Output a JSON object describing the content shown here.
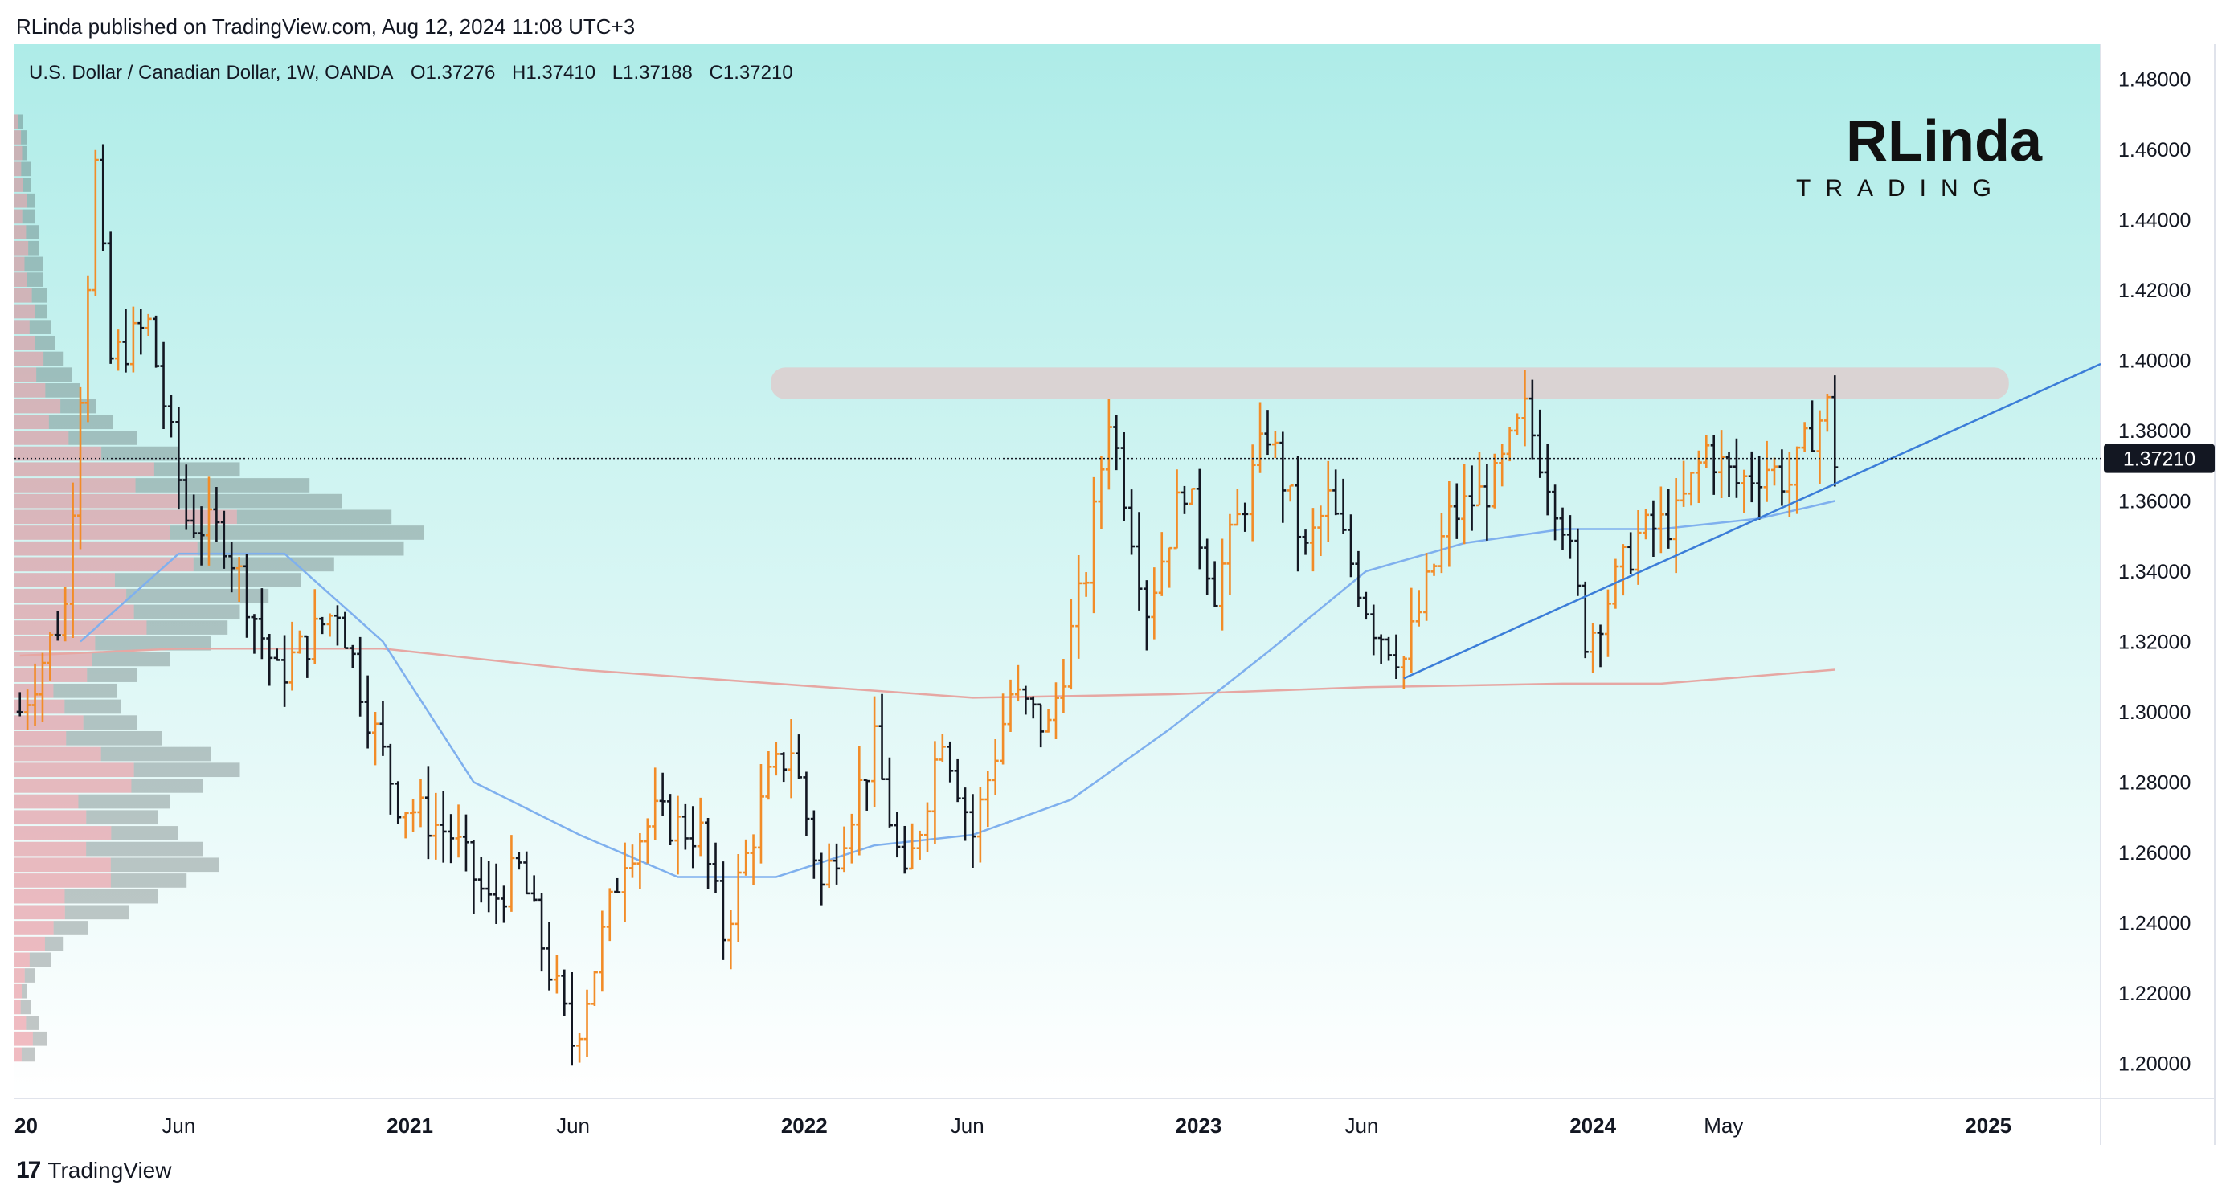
{
  "header": {
    "publisher_line": "RLinda published on TradingView.com, Aug 12, 2024 11:08 UTC+3"
  },
  "chart_header": {
    "symbol": "U.S. Dollar / Canadian Dollar, 1W, OANDA",
    "open_label": "O",
    "open": "1.37276",
    "high_label": "H",
    "high": "1.37410",
    "low_label": "L",
    "low": "1.37188",
    "close_label": "C",
    "close": "1.37210"
  },
  "brand": {
    "main": "RLinda",
    "sub": "TRADING"
  },
  "footer": {
    "logo_text": "TradingView",
    "logo_mark": "17"
  },
  "colors": {
    "background_top": "#aeece8",
    "background_bottom": "#ffffff",
    "bull_bar": "#f28c28",
    "bear_bar": "#131722",
    "resistance_zone": "#dccfcf",
    "trendline": "#3b7dd8",
    "ma_fast": "#7fb0ee",
    "ma_slow": "#e6a7a3",
    "price_tag_bg": "#131722",
    "volume_profile_red": "#e36b78",
    "volume_profile_dark": "#2e3b3b"
  },
  "chart_data": {
    "type": "ohlc",
    "title": "U.S. Dollar / Canadian Dollar, 1W, OANDA",
    "ylim": [
      1.19,
      1.49
    ],
    "y_ticks": [
      "1.48000",
      "1.46000",
      "1.44000",
      "1.42000",
      "1.40000",
      "1.38000",
      "1.36000",
      "1.34000",
      "1.32000",
      "1.30000",
      "1.28000",
      "1.26000",
      "1.24000",
      "1.22000",
      "1.20000"
    ],
    "x_tick_labels": [
      {
        "label": "20",
        "date": "2020-01-01",
        "bold": true
      },
      {
        "label": "Jun",
        "date": "2020-06-01",
        "bold": false
      },
      {
        "label": "2021",
        "date": "2021-01-01",
        "bold": true
      },
      {
        "label": "Jun",
        "date": "2021-06-01",
        "bold": false
      },
      {
        "label": "2022",
        "date": "2022-01-01",
        "bold": true
      },
      {
        "label": "Jun",
        "date": "2022-06-01",
        "bold": false
      },
      {
        "label": "2023",
        "date": "2023-01-01",
        "bold": true
      },
      {
        "label": "Jun",
        "date": "2023-06-01",
        "bold": false
      },
      {
        "label": "2024",
        "date": "2024-01-01",
        "bold": true
      },
      {
        "label": "May",
        "date": "2024-05-01",
        "bold": false
      },
      {
        "label": "2025",
        "date": "2025-01-01",
        "bold": true
      }
    ],
    "x_start": "2020-01-01",
    "x_end": "2025-04-15",
    "last_price": "1.37210",
    "resistance_zone": {
      "from": "2021-12-01",
      "to": "2025-01-20",
      "low": 1.389,
      "high": 1.398
    },
    "trendline": {
      "from_date": "2023-07-10",
      "from_price": 1.3095,
      "to_date": "2025-04-15",
      "to_price": 1.399
    },
    "anchor_points": [
      [
        "2020-01-06",
        1.3
      ],
      [
        "2020-02-17",
        1.33
      ],
      [
        "2020-03-16",
        1.455
      ],
      [
        "2020-03-30",
        1.4
      ],
      [
        "2020-05-04",
        1.41
      ],
      [
        "2020-06-08",
        1.355
      ],
      [
        "2020-07-13",
        1.35
      ],
      [
        "2020-08-31",
        1.31
      ],
      [
        "2020-10-26",
        1.33
      ],
      [
        "2020-11-23",
        1.3
      ],
      [
        "2020-12-21",
        1.275
      ],
      [
        "2021-02-08",
        1.265
      ],
      [
        "2021-03-15",
        1.245
      ],
      [
        "2021-04-12",
        1.255
      ],
      [
        "2021-06-01",
        1.205
      ],
      [
        "2021-07-19",
        1.26
      ],
      [
        "2021-08-16",
        1.27
      ],
      [
        "2021-09-27",
        1.265
      ],
      [
        "2021-10-18",
        1.237
      ],
      [
        "2021-11-29",
        1.28
      ],
      [
        "2021-12-20",
        1.29
      ],
      [
        "2022-01-17",
        1.25
      ],
      [
        "2022-03-07",
        1.29
      ],
      [
        "2022-04-04",
        1.25
      ],
      [
        "2022-05-09",
        1.295
      ],
      [
        "2022-06-06",
        1.265
      ],
      [
        "2022-07-11",
        1.305
      ],
      [
        "2022-08-15",
        1.295
      ],
      [
        "2022-09-19",
        1.34
      ],
      [
        "2022-10-10",
        1.385
      ],
      [
        "2022-11-14",
        1.33
      ],
      [
        "2022-12-19",
        1.365
      ],
      [
        "2023-01-16",
        1.335
      ],
      [
        "2023-03-06",
        1.38
      ],
      [
        "2023-04-10",
        1.345
      ],
      [
        "2023-05-01",
        1.36
      ],
      [
        "2023-06-12",
        1.325
      ],
      [
        "2023-07-10",
        1.315
      ],
      [
        "2023-08-21",
        1.355
      ],
      [
        "2023-10-02",
        1.365
      ],
      [
        "2023-10-30",
        1.385
      ],
      [
        "2023-12-04",
        1.355
      ],
      [
        "2023-12-26",
        1.32
      ],
      [
        "2024-02-12",
        1.35
      ],
      [
        "2024-03-18",
        1.355
      ],
      [
        "2024-04-15",
        1.375
      ],
      [
        "2024-05-13",
        1.365
      ],
      [
        "2024-06-10",
        1.37
      ],
      [
        "2024-07-01",
        1.365
      ],
      [
        "2024-07-22",
        1.38
      ],
      [
        "2024-08-05",
        1.3865
      ],
      [
        "2024-08-12",
        1.3721
      ]
    ],
    "ma_fast_points": [
      [
        "2020-03-02",
        1.32
      ],
      [
        "2020-06-01",
        1.345
      ],
      [
        "2020-09-07",
        1.345
      ],
      [
        "2020-12-07",
        1.32
      ],
      [
        "2021-03-01",
        1.28
      ],
      [
        "2021-06-07",
        1.265
      ],
      [
        "2021-09-06",
        1.253
      ],
      [
        "2021-12-06",
        1.253
      ],
      [
        "2022-03-07",
        1.262
      ],
      [
        "2022-06-06",
        1.265
      ],
      [
        "2022-09-05",
        1.275
      ],
      [
        "2022-12-05",
        1.295
      ],
      [
        "2023-03-06",
        1.317
      ],
      [
        "2023-06-05",
        1.34
      ],
      [
        "2023-09-04",
        1.348
      ],
      [
        "2023-12-04",
        1.352
      ],
      [
        "2024-03-04",
        1.352
      ],
      [
        "2024-06-03",
        1.355
      ],
      [
        "2024-08-12",
        1.36
      ]
    ],
    "ma_slow_points": [
      [
        "2020-01-06",
        1.316
      ],
      [
        "2020-06-01",
        1.318
      ],
      [
        "2020-12-07",
        1.318
      ],
      [
        "2021-06-07",
        1.312
      ],
      [
        "2021-12-06",
        1.308
      ],
      [
        "2022-06-06",
        1.304
      ],
      [
        "2022-12-05",
        1.305
      ],
      [
        "2023-06-05",
        1.307
      ],
      [
        "2023-12-04",
        1.308
      ],
      [
        "2024-03-04",
        1.308
      ],
      [
        "2024-08-12",
        1.312
      ]
    ],
    "volume_profile": {
      "price_from": 1.2,
      "price_to": 1.47,
      "rows": 60,
      "levels": [
        0.05,
        0.08,
        0.06,
        0.04,
        0.03,
        0.05,
        0.09,
        0.12,
        0.18,
        0.28,
        0.35,
        0.42,
        0.5,
        0.46,
        0.4,
        0.35,
        0.38,
        0.46,
        0.55,
        0.48,
        0.36,
        0.3,
        0.26,
        0.25,
        0.3,
        0.38,
        0.48,
        0.52,
        0.55,
        0.62,
        0.7,
        0.78,
        0.95,
        1.0,
        0.92,
        0.8,
        0.72,
        0.55,
        0.4,
        0.3,
        0.24,
        0.2,
        0.16,
        0.14,
        0.12,
        0.1,
        0.09,
        0.08,
        0.08,
        0.07,
        0.07,
        0.06,
        0.06,
        0.05,
        0.05,
        0.04,
        0.04,
        0.03,
        0.03,
        0.02
      ]
    }
  }
}
